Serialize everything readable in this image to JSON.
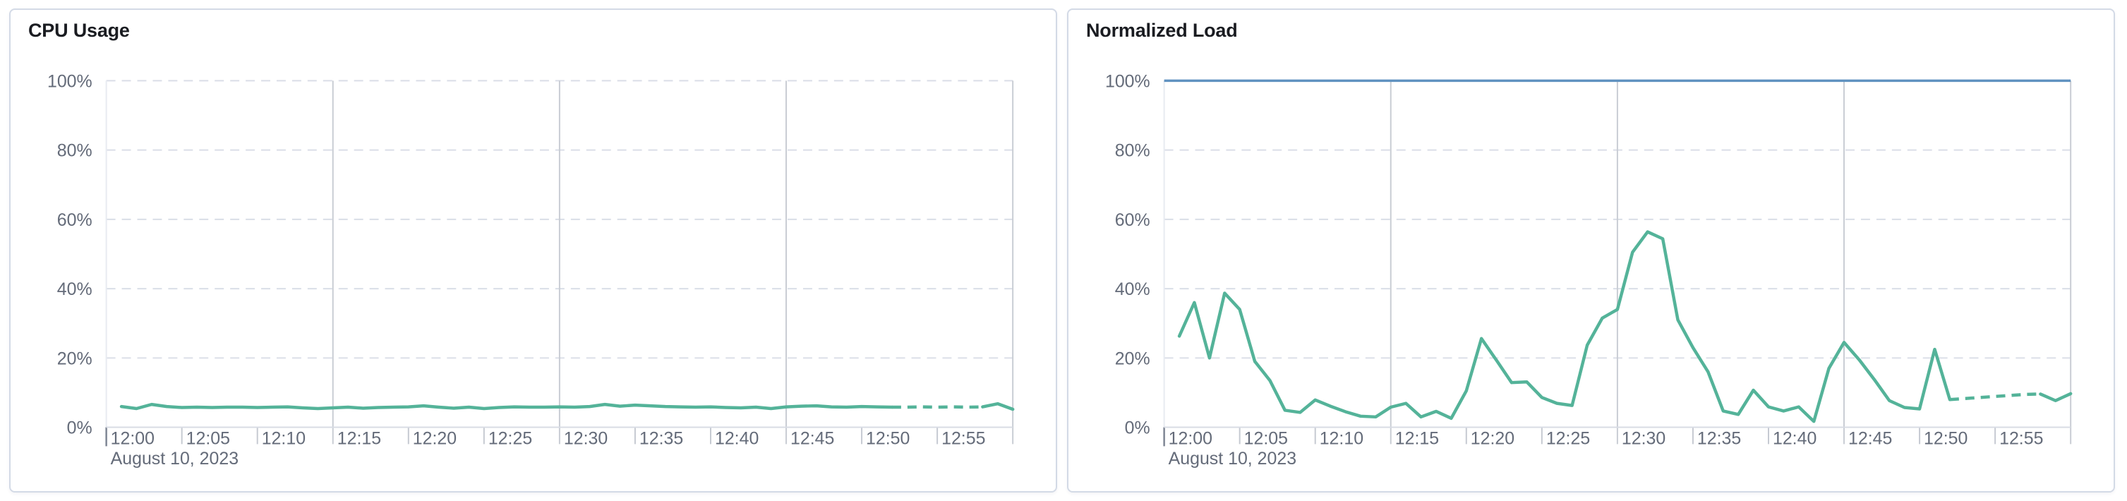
{
  "theme": {
    "page_background": "#ffffff",
    "card_background": "#ffffff",
    "card_border": "#d3dae6",
    "title_color": "#1a1c21",
    "axis_label_color": "#646b79",
    "gridline_dashed_color": "#dadee7",
    "gridline_major_color": "#c9cdd4",
    "plot_left_border_color": "#e8ebf1",
    "axis_line_color": "#d8dce4",
    "tick_color": "#c6cad2",
    "origin_tick_color": "#7f8694",
    "series_green": "#54B399",
    "threshold_blue": "#6092C0"
  },
  "chart_data": [
    {
      "type": "line",
      "title": "CPU Usage",
      "x_axis": {
        "tick_labels": [
          "12:00",
          "12:05",
          "12:10",
          "12:15",
          "12:20",
          "12:25",
          "12:30",
          "12:35",
          "12:40",
          "12:45",
          "12:50",
          "12:55"
        ],
        "date_label": "August 10, 2023",
        "tick_interval_minutes": 5,
        "range_minutes": [
          0,
          60
        ],
        "major_gridline_minutes": [
          15,
          30,
          45,
          60
        ]
      },
      "y_axis": {
        "min": 0,
        "max": 100,
        "unit": "%",
        "tick_labels": [
          "0%",
          "20%",
          "40%",
          "60%",
          "80%",
          "100%"
        ],
        "tick_values": [
          0,
          20,
          40,
          60,
          80,
          100
        ],
        "gridline_values": [
          20,
          40,
          60,
          80,
          100
        ],
        "grid": "dashed"
      },
      "legend": "none",
      "series": [
        {
          "name": "CPU Usage",
          "color": "#54B399",
          "start_minute": 1,
          "interval_minutes": 1,
          "values": [
            6.0,
            5.4,
            6.6,
            6.0,
            5.7,
            5.8,
            5.7,
            5.8,
            5.8,
            5.7,
            5.8,
            5.9,
            5.6,
            5.4,
            5.6,
            5.8,
            5.5,
            5.7,
            5.8,
            5.9,
            6.2,
            5.8,
            5.5,
            5.8,
            5.4,
            5.7,
            5.9,
            5.8,
            5.8,
            5.9,
            5.8,
            6.0,
            6.6,
            6.1,
            6.4,
            6.2,
            6.0,
            5.9,
            5.8,
            5.9,
            5.7,
            5.6,
            5.8,
            5.4,
            5.9,
            6.1,
            6.2,
            5.9,
            5.8,
            6.0,
            5.9,
            5.8,
            5.8,
            5.9,
            5.8,
            5.9,
            5.8,
            5.9,
            6.8,
            5.2
          ],
          "dashed_segment_minutes": [
            52,
            58
          ]
        }
      ]
    },
    {
      "type": "line",
      "title": "Normalized Load",
      "x_axis": {
        "tick_labels": [
          "12:00",
          "12:05",
          "12:10",
          "12:15",
          "12:20",
          "12:25",
          "12:30",
          "12:35",
          "12:40",
          "12:45",
          "12:50",
          "12:55"
        ],
        "date_label": "August 10, 2023",
        "tick_interval_minutes": 5,
        "range_minutes": [
          0,
          60
        ],
        "major_gridline_minutes": [
          15,
          30,
          45,
          60
        ]
      },
      "y_axis": {
        "min": 0,
        "max": 100,
        "unit": "%",
        "tick_labels": [
          "0%",
          "20%",
          "40%",
          "60%",
          "80%",
          "100%"
        ],
        "tick_values": [
          0,
          20,
          40,
          60,
          80,
          100
        ],
        "gridline_values": [
          20,
          40,
          60,
          80
        ],
        "grid": "dashed"
      },
      "legend": "none",
      "threshold_line": {
        "value": 100,
        "color": "#6092C0"
      },
      "series": [
        {
          "name": "Normalized Load",
          "color": "#54B399",
          "start_minute": 1,
          "interval_minutes": 1,
          "values": [
            26.3,
            36,
            20,
            38.7,
            34,
            19,
            13.5,
            4.9,
            4.3,
            7.9,
            6.1,
            4.5,
            3.2,
            3.0,
            5.8,
            6.9,
            3.0,
            4.6,
            2.6,
            10.5,
            25.6,
            19.3,
            12.9,
            13.1,
            8.6,
            6.9,
            6.3,
            23.7,
            31.5,
            34,
            50.5,
            56.4,
            54.4,
            31,
            23,
            16,
            4.7,
            3.7,
            10.7,
            5.9,
            4.7,
            5.9,
            1.7,
            17,
            24.5,
            19.5,
            13.8,
            7.7,
            5.7,
            5.3,
            22.5,
            8,
            8.3,
            8.6,
            8.9,
            9.2,
            9.5,
            9.6,
            7.7,
            9.7
          ],
          "dashed_segment_minutes": [
            52,
            58
          ]
        }
      ]
    }
  ]
}
